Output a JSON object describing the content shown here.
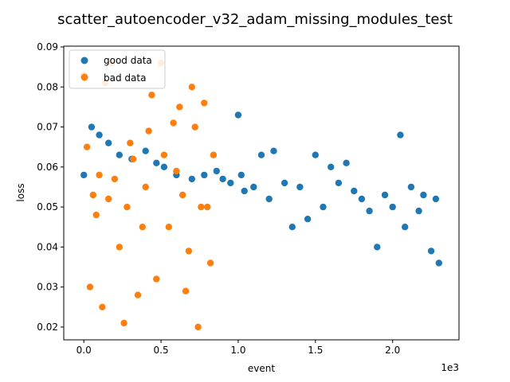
{
  "chart_data": {
    "type": "scatter",
    "title": "scatter_autoencoder_v32_adam_missing_modules_test",
    "xlabel": "event",
    "ylabel": "loss",
    "x_offset_label": "1e3",
    "xlim": [
      -130,
      2430
    ],
    "ylim": [
      0.0168,
      0.0902
    ],
    "xticks": [
      0,
      500,
      1000,
      1500,
      2000
    ],
    "xtick_labels": [
      "0.0",
      "0.5",
      "1.0",
      "1.5",
      "2.0"
    ],
    "yticks": [
      0.02,
      0.03,
      0.04,
      0.05,
      0.06,
      0.07,
      0.08,
      0.09
    ],
    "ytick_labels": [
      "0.02",
      "0.03",
      "0.04",
      "0.05",
      "0.06",
      "0.07",
      "0.08",
      "0.09"
    ],
    "grid": false,
    "legend_position": "top-left",
    "series": [
      {
        "name": "good data",
        "color": "#1f77b4",
        "x": [
          0,
          50,
          100,
          160,
          230,
          310,
          400,
          470,
          520,
          600,
          700,
          780,
          860,
          900,
          950,
          1000,
          1020,
          1040,
          1100,
          1150,
          1200,
          1230,
          1300,
          1350,
          1400,
          1450,
          1500,
          1550,
          1600,
          1650,
          1700,
          1750,
          1800,
          1850,
          1900,
          1950,
          2000,
          2050,
          2080,
          2120,
          2170,
          2200,
          2250,
          2280,
          2300
        ],
        "y": [
          0.058,
          0.07,
          0.068,
          0.066,
          0.063,
          0.062,
          0.064,
          0.061,
          0.06,
          0.058,
          0.057,
          0.058,
          0.059,
          0.057,
          0.056,
          0.073,
          0.058,
          0.054,
          0.055,
          0.063,
          0.052,
          0.064,
          0.056,
          0.045,
          0.055,
          0.047,
          0.063,
          0.05,
          0.06,
          0.056,
          0.061,
          0.054,
          0.052,
          0.049,
          0.04,
          0.053,
          0.05,
          0.068,
          0.045,
          0.055,
          0.049,
          0.053,
          0.039,
          0.052,
          0.036
        ]
      },
      {
        "name": "bad data",
        "color": "#ff7f0e",
        "x": [
          0,
          20,
          40,
          60,
          80,
          100,
          120,
          140,
          160,
          180,
          200,
          230,
          260,
          280,
          300,
          320,
          350,
          380,
          400,
          420,
          440,
          470,
          500,
          520,
          550,
          580,
          600,
          620,
          640,
          660,
          680,
          700,
          720,
          740,
          760,
          780,
          800,
          820,
          840
        ],
        "y": [
          0.083,
          0.065,
          0.03,
          0.053,
          0.048,
          0.058,
          0.025,
          0.081,
          0.052,
          0.086,
          0.057,
          0.04,
          0.021,
          0.05,
          0.066,
          0.062,
          0.028,
          0.045,
          0.055,
          0.069,
          0.078,
          0.032,
          0.086,
          0.063,
          0.045,
          0.071,
          0.059,
          0.075,
          0.053,
          0.029,
          0.039,
          0.08,
          0.07,
          0.02,
          0.05,
          0.076,
          0.05,
          0.036,
          0.063
        ]
      }
    ]
  }
}
